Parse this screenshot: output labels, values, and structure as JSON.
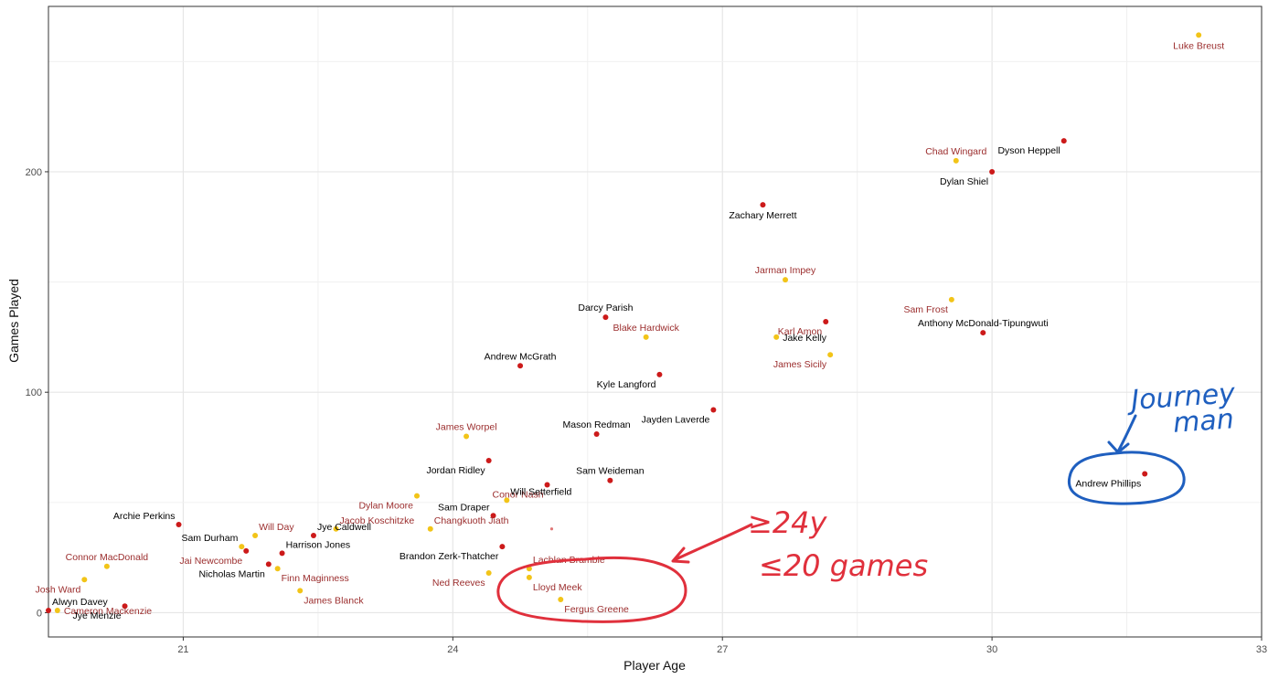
{
  "chart_data": {
    "type": "scatter",
    "title": "",
    "xlabel": "Player Age",
    "ylabel": "Games Played",
    "xlim": [
      19.5,
      33
    ],
    "ylim": [
      -11,
      275
    ],
    "x_ticks": [
      21,
      24,
      27,
      30,
      33
    ],
    "y_ticks": [
      0,
      100,
      200
    ],
    "grid": true,
    "colors": {
      "red": "#cc1a1a",
      "yellow": "#f2c418",
      "label_dark": "#000000",
      "label_red": "#9b2d2d",
      "axis_text": "#4d4d4d"
    },
    "points": [
      {
        "name": "Luke Breust",
        "age": 32.3,
        "games": 262,
        "color": "yellow",
        "label_color": "red",
        "label_pos": "below"
      },
      {
        "name": "Dyson Heppell",
        "age": 30.8,
        "games": 214,
        "color": "red",
        "label_color": "dark",
        "label_pos": "below-left"
      },
      {
        "name": "Chad Wingard",
        "age": 29.6,
        "games": 205,
        "color": "yellow",
        "label_color": "red",
        "label_pos": "above"
      },
      {
        "name": "Dylan Shiel",
        "age": 30.0,
        "games": 200,
        "color": "red",
        "label_color": "dark",
        "label_pos": "below-left"
      },
      {
        "name": "Zachary Merrett",
        "age": 27.45,
        "games": 185,
        "color": "red",
        "label_color": "dark",
        "label_pos": "below"
      },
      {
        "name": "Jarman Impey",
        "age": 27.7,
        "games": 151,
        "color": "yellow",
        "label_color": "red",
        "label_pos": "above"
      },
      {
        "name": "Sam Frost",
        "age": 29.55,
        "games": 142,
        "color": "yellow",
        "label_color": "red",
        "label_pos": "below-left"
      },
      {
        "name": "Karl Amon",
        "age": 28.15,
        "games": 132,
        "color": "red",
        "label_color": "red",
        "label_pos": "below-left"
      },
      {
        "name": "Jake Kelly",
        "age": 27.6,
        "games": 125,
        "color": "yellow",
        "label_color": "dark",
        "label_pos": "right"
      },
      {
        "name": "Anthony McDonald-Tipungwuti",
        "age": 29.9,
        "games": 127,
        "color": "red",
        "label_color": "dark",
        "label_pos": "above"
      },
      {
        "name": "Darcy Parish",
        "age": 25.7,
        "games": 134,
        "color": "red",
        "label_color": "dark",
        "label_pos": "above"
      },
      {
        "name": "Blake Hardwick",
        "age": 26.15,
        "games": 125,
        "color": "yellow",
        "label_color": "red",
        "label_pos": "above"
      },
      {
        "name": "James Sicily",
        "age": 28.2,
        "games": 117,
        "color": "yellow",
        "label_color": "red",
        "label_pos": "below-left"
      },
      {
        "name": "Andrew McGrath",
        "age": 24.75,
        "games": 112,
        "color": "red",
        "label_color": "dark",
        "label_pos": "above"
      },
      {
        "name": "Kyle Langford",
        "age": 26.3,
        "games": 108,
        "color": "red",
        "label_color": "dark",
        "label_pos": "below-left"
      },
      {
        "name": "Jayden Laverde",
        "age": 26.9,
        "games": 92,
        "color": "red",
        "label_color": "dark",
        "label_pos": "below-left"
      },
      {
        "name": "James Worpel",
        "age": 24.15,
        "games": 80,
        "color": "yellow",
        "label_color": "red",
        "label_pos": "above"
      },
      {
        "name": "Mason Redman",
        "age": 25.6,
        "games": 81,
        "color": "red",
        "label_color": "dark",
        "label_pos": "above"
      },
      {
        "name": "Andrew Phillips",
        "age": 31.7,
        "games": 63,
        "color": "red",
        "label_color": "dark",
        "label_pos": "below-left"
      },
      {
        "name": "Jordan Ridley",
        "age": 24.4,
        "games": 69,
        "color": "red",
        "label_color": "dark",
        "label_pos": "below-left"
      },
      {
        "name": "Sam Weideman",
        "age": 25.75,
        "games": 60,
        "color": "red",
        "label_color": "dark",
        "label_pos": "above"
      },
      {
        "name": "Conor Nash",
        "age": 25.05,
        "games": 58,
        "color": "red",
        "label_color": "red",
        "label_pos": "below-left"
      },
      {
        "name": "Will Setterfield",
        "age": 24.6,
        "games": 51,
        "color": "yellow",
        "label_color": "dark",
        "label_pos": "above-right"
      },
      {
        "name": "Dylan Moore",
        "age": 23.6,
        "games": 53,
        "color": "yellow",
        "label_color": "red",
        "label_pos": "below-left"
      },
      {
        "name": "Sam Draper",
        "age": 24.45,
        "games": 44,
        "color": "red",
        "label_color": "dark",
        "label_pos": "above-left"
      },
      {
        "name": "Changkuoth Jiath",
        "age": 23.75,
        "games": 38,
        "color": "yellow",
        "label_color": "red",
        "label_pos": "above-right"
      },
      {
        "name": "Archie Perkins",
        "age": 20.95,
        "games": 40,
        "color": "red",
        "label_color": "dark",
        "label_pos": "above-left"
      },
      {
        "name": "Will Day",
        "age": 21.8,
        "games": 35,
        "color": "yellow",
        "label_color": "red",
        "label_pos": "above-right"
      },
      {
        "name": "Jacob Koschitzke",
        "age": 22.7,
        "games": 38,
        "color": "yellow",
        "label_color": "red",
        "label_pos": "above-right"
      },
      {
        "name": "Jye Caldwell",
        "age": 22.45,
        "games": 35,
        "color": "red",
        "label_color": "dark",
        "label_pos": "above-right"
      },
      {
        "name": "Sam Durham",
        "age": 21.65,
        "games": 30,
        "color": "yellow",
        "label_color": "dark",
        "label_pos": "above-left"
      },
      {
        "name": "Harrison Jones",
        "age": 22.1,
        "games": 27,
        "color": "red",
        "label_color": "dark",
        "label_pos": "above-right"
      },
      {
        "name": "Jai Newcombe",
        "age": 21.7,
        "games": 28,
        "color": "red",
        "label_color": "red",
        "label_pos": "below-left"
      },
      {
        "name": "Brandon Zerk-Thatcher",
        "age": 24.55,
        "games": 30,
        "color": "red",
        "label_color": "dark",
        "label_pos": "below-left"
      },
      {
        "name": "Lachlan Bramble",
        "age": 24.85,
        "games": 20,
        "color": "yellow",
        "label_color": "red",
        "label_pos": "above-right"
      },
      {
        "name": "Connor MacDonald",
        "age": 20.15,
        "games": 21,
        "color": "yellow",
        "label_color": "red",
        "label_pos": "above"
      },
      {
        "name": "Nicholas Martin",
        "age": 21.95,
        "games": 22,
        "color": "red",
        "label_color": "dark",
        "label_pos": "below-left"
      },
      {
        "name": "Finn Maginness",
        "age": 22.05,
        "games": 20,
        "color": "yellow",
        "label_color": "red",
        "label_pos": "below-right"
      },
      {
        "name": "Ned Reeves",
        "age": 24.4,
        "games": 18,
        "color": "yellow",
        "label_color": "red",
        "label_pos": "below-left"
      },
      {
        "name": "Lloyd Meek",
        "age": 24.85,
        "games": 16,
        "color": "yellow",
        "label_color": "red",
        "label_pos": "below-right"
      },
      {
        "name": "Josh Ward",
        "age": 19.9,
        "games": 15,
        "color": "yellow",
        "label_color": "red",
        "label_pos": "below-left"
      },
      {
        "name": "James Blanck",
        "age": 22.3,
        "games": 10,
        "color": "yellow",
        "label_color": "red",
        "label_pos": "below-right"
      },
      {
        "name": "Fergus Greene",
        "age": 25.2,
        "games": 6,
        "color": "yellow",
        "label_color": "red",
        "label_pos": "below-right"
      },
      {
        "name": "Alwyn Davey",
        "age": 19.5,
        "games": 1,
        "color": "red",
        "label_color": "dark",
        "label_pos": "above-right"
      },
      {
        "name": "Cameron Mackenzie",
        "age": 19.6,
        "games": 1,
        "color": "yellow",
        "label_color": "red",
        "label_pos": "right"
      },
      {
        "name": "Jye Menzie",
        "age": 20.35,
        "games": 3,
        "color": "red",
        "label_color": "dark",
        "label_pos": "below-left"
      }
    ],
    "stray_points": [
      {
        "age": 25.1,
        "games": 38,
        "color": "red"
      }
    ]
  },
  "annotations": {
    "journey_note": "Journey man",
    "young_note_line1": "≥24y",
    "young_note_line2": "≤20 games"
  }
}
